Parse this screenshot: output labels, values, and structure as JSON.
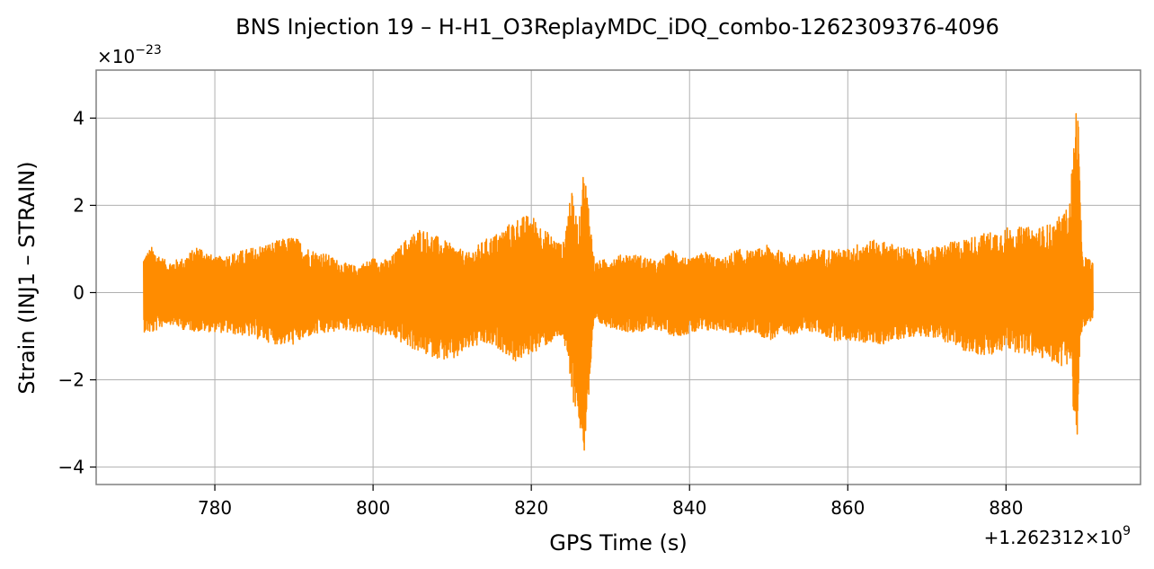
{
  "chart_data": {
    "type": "line",
    "title": "BNS Injection 19 – H-H1_O3ReplayMDC_iDQ_combo-1262309376-4096",
    "xlabel": "GPS Time (s)",
    "ylabel": "Strain (INJ1 – STRAIN)",
    "x_offset_label": "+1.262312×10",
    "x_offset_exponent": "9",
    "y_multiplier_label": "×10",
    "y_multiplier_exponent": "−23",
    "xlim": [
      765,
      1262312897
    ],
    "xlim_data": [
      765,
      897
    ],
    "ylim": [
      -4.4,
      5.1
    ],
    "xticks": [
      780,
      800,
      820,
      840,
      860,
      880
    ],
    "xtick_labels": [
      "780",
      "800",
      "820",
      "840",
      "860",
      "880"
    ],
    "yticks": [
      -4,
      -2,
      0,
      2,
      4
    ],
    "ytick_labels": [
      "−4",
      "−2",
      "0",
      "2",
      "4"
    ],
    "grid": true,
    "series": [
      {
        "color": "#ff8c00",
        "x_range": [
          771,
          891
        ],
        "envelope": {
          "x": [
            771,
            772,
            774,
            776,
            778,
            780,
            782,
            784,
            786,
            788,
            790,
            792,
            794,
            796,
            798,
            800,
            802,
            804,
            806,
            808,
            810,
            812,
            814,
            816,
            818,
            820,
            822,
            824,
            825,
            826,
            826.5,
            827,
            828,
            830,
            832,
            834,
            836,
            838,
            840,
            842,
            844,
            846,
            848,
            850,
            852,
            854,
            856,
            858,
            860,
            862,
            864,
            866,
            868,
            870,
            872,
            874,
            876,
            878,
            880,
            882,
            884,
            886,
            887,
            888,
            889,
            889.3,
            889.6,
            890,
            891
          ],
          "upper": [
            0.85,
            1.05,
            0.7,
            0.8,
            1.1,
            0.8,
            0.9,
            1.0,
            1.1,
            1.2,
            1.3,
            1.0,
            0.9,
            0.7,
            0.6,
            0.8,
            0.75,
            1.2,
            1.5,
            1.3,
            1.1,
            0.9,
            1.2,
            1.4,
            1.7,
            1.8,
            1.4,
            1.1,
            2.4,
            1.5,
            2.8,
            2.5,
            0.7,
            0.8,
            0.9,
            0.85,
            0.7,
            1.0,
            0.75,
            0.95,
            0.75,
            1.0,
            0.95,
            1.1,
            0.9,
            0.85,
            1.0,
            1.0,
            1.0,
            1.2,
            1.2,
            1.1,
            1.0,
            1.0,
            1.1,
            1.2,
            1.3,
            1.4,
            1.5,
            1.5,
            1.5,
            1.6,
            1.8,
            2.0,
            4.7,
            3.0,
            0.9,
            0.85,
            0.7
          ],
          "lower": [
            -0.9,
            -0.95,
            -0.7,
            -0.85,
            -0.9,
            -0.9,
            -0.95,
            -1.0,
            -1.1,
            -1.2,
            -1.2,
            -1.0,
            -0.95,
            -0.85,
            -0.9,
            -0.95,
            -1.0,
            -1.2,
            -1.4,
            -1.5,
            -1.6,
            -1.3,
            -1.2,
            -1.3,
            -1.6,
            -1.4,
            -1.2,
            -1.0,
            -2.3,
            -3.0,
            -4.0,
            -3.0,
            -0.7,
            -0.8,
            -0.9,
            -0.9,
            -0.85,
            -1.0,
            -0.95,
            -0.9,
            -0.85,
            -1.0,
            -0.9,
            -1.1,
            -1.0,
            -0.9,
            -0.9,
            -1.1,
            -1.1,
            -1.15,
            -1.2,
            -1.1,
            -1.0,
            -1.0,
            -1.1,
            -1.3,
            -1.4,
            -1.5,
            -1.3,
            -1.4,
            -1.5,
            -1.6,
            -1.7,
            -1.6,
            -3.8,
            -1.5,
            -0.8,
            -0.8,
            -0.7
          ]
        }
      }
    ]
  }
}
